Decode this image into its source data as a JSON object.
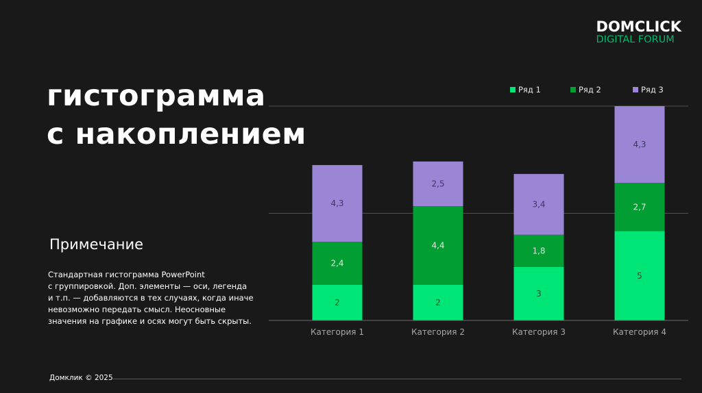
{
  "logo": {
    "top": "DOMCLICK",
    "bottom": "DIGITAL FORUM"
  },
  "title": {
    "line1": "гистограмма",
    "line2": "с накоплением"
  },
  "note": {
    "heading": "Примечание",
    "lines": [
      "Стандартная гистограмма PowerPoint",
      "с группировкой. Доп. элементы — оси, легенда",
      "и т.п. — добавляются в тех случаях, когда иначе",
      "невозможно передать смысл. Неосновные",
      "значения на графике и осях могут быть скрыты."
    ]
  },
  "footer": {
    "text": "Домклик © 2025"
  },
  "colors": {
    "background": "#1a191a",
    "series1": "#00e676",
    "series2": "#009e33",
    "series3": "#9b86d6",
    "accent": "#00b86b"
  },
  "chart_data": {
    "type": "bar",
    "stacked": true,
    "categories": [
      "Категория 1",
      "Категория 2",
      "Категория 3",
      "Категория 4"
    ],
    "series": [
      {
        "name": "Ряд 1",
        "values": [
          2,
          2,
          3,
          5
        ],
        "labels": [
          "2",
          "2",
          "3",
          "5"
        ]
      },
      {
        "name": "Ряд 2",
        "values": [
          2.4,
          4.4,
          1.8,
          2.7
        ],
        "labels": [
          "2,4",
          "4,4",
          "1,8",
          "2,7"
        ]
      },
      {
        "name": "Ряд 3",
        "values": [
          4.3,
          2.5,
          3.4,
          4.3
        ],
        "labels": [
          "4,3",
          "2,5",
          "3,4",
          "4,3"
        ]
      }
    ],
    "title": "",
    "xlabel": "",
    "ylabel": "",
    "ylim": [
      0,
      12
    ],
    "grid": true,
    "legend": "top-right"
  }
}
